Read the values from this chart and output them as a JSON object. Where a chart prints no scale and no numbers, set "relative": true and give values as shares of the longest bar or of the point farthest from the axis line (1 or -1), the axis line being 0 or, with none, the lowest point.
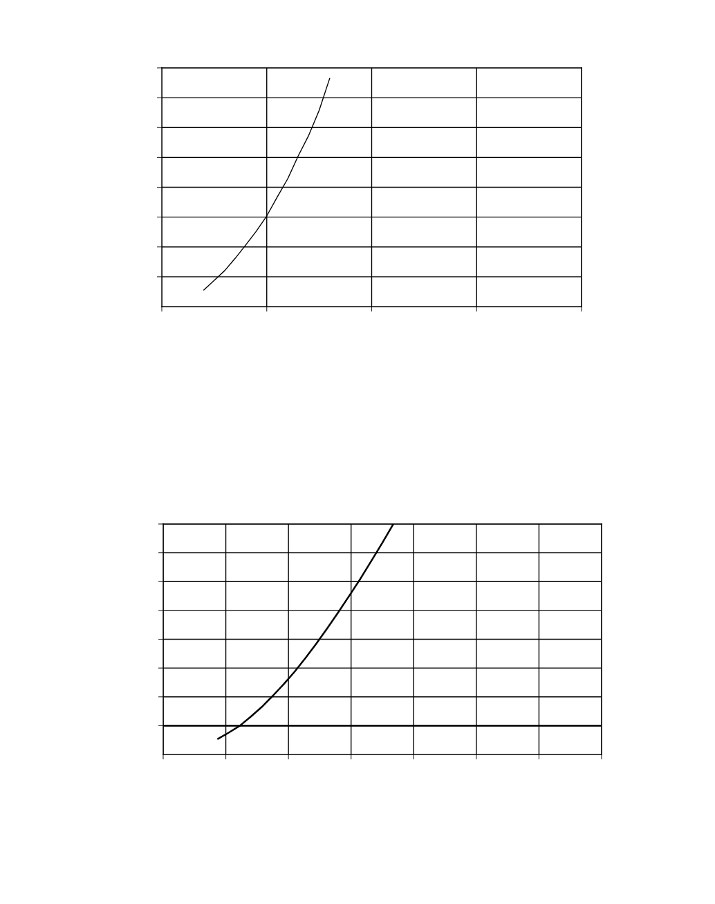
{
  "chart_data": [
    {
      "type": "line",
      "relative": true,
      "tick_labels": false,
      "grid": true,
      "categories": [
        null,
        null,
        null,
        null,
        null,
        null,
        null,
        null,
        null,
        null,
        null,
        null,
        null,
        null,
        null,
        null,
        null,
        null,
        null,
        null,
        null,
        null,
        null,
        null,
        null,
        null,
        null,
        null,
        null,
        null,
        null,
        null,
        null,
        null,
        null,
        null,
        null,
        null,
        null,
        null,
        null
      ],
      "series": [
        {
          "color": "#000000",
          "values": [
            null,
            null,
            null,
            null,
            0.073,
            0.115,
            0.158,
            0.212,
            0.27,
            0.33,
            0.397,
            0.48,
            0.56,
            0.66,
            0.75,
            0.86,
            1.0,
            null,
            null,
            null,
            null,
            null,
            null,
            null,
            null,
            null,
            null,
            null,
            null,
            null,
            null,
            null,
            null,
            null,
            null,
            null,
            null,
            null,
            null,
            null,
            null
          ]
        }
      ]
    },
    {
      "type": "line",
      "relative": true,
      "tick_labels": false,
      "grid": true,
      "categories": [
        null,
        null,
        null,
        null,
        null,
        null,
        null,
        null,
        null,
        null,
        null,
        null,
        null,
        null,
        null,
        null,
        null,
        null,
        null,
        null,
        null,
        null,
        null,
        null,
        null,
        null,
        null,
        null,
        null,
        null,
        null,
        null,
        null,
        null,
        null,
        null,
        null,
        null,
        null,
        null,
        null
      ],
      "series": [
        {
          "color": "#000000",
          "values": [
            null,
            null,
            null,
            null,
            null,
            -0.065,
            -0.034,
            0.0,
            0.045,
            0.093,
            0.148,
            0.206,
            0.268,
            0.337,
            0.409,
            0.485,
            0.564,
            0.646,
            0.729,
            0.818,
            0.907,
            1.0,
            null,
            null,
            null,
            null,
            null,
            null,
            null,
            null,
            null,
            null,
            null,
            null,
            null,
            null,
            null,
            null,
            null,
            null,
            null
          ]
        }
      ]
    }
  ]
}
